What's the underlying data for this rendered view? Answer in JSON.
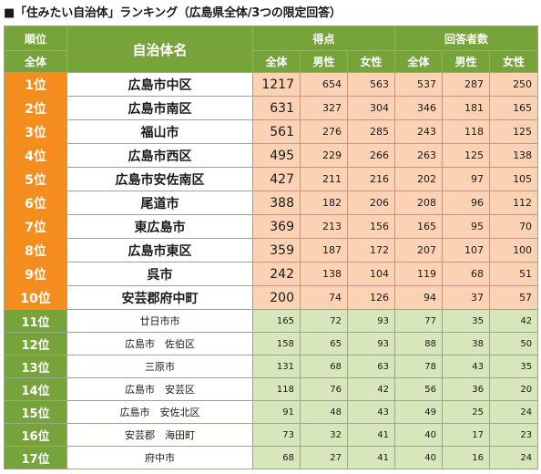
{
  "title": "■「住みたい自治体」ランキング（広島県全体/3つの限定回答）",
  "headers": {
    "rank": "順位",
    "rank_sub": "全体",
    "name": "自治体名",
    "score": "得点",
    "respondents": "回答者数",
    "total": "全体",
    "male": "男性",
    "female": "女性"
  },
  "rows": [
    {
      "rank": "1位",
      "name": "広島市中区",
      "score_total": "1217",
      "score_male": "654",
      "score_female": "563",
      "resp_total": "537",
      "resp_male": "287",
      "resp_female": "250"
    },
    {
      "rank": "2位",
      "name": "広島市南区",
      "score_total": "631",
      "score_male": "327",
      "score_female": "304",
      "resp_total": "346",
      "resp_male": "181",
      "resp_female": "165"
    },
    {
      "rank": "3位",
      "name": "福山市",
      "score_total": "561",
      "score_male": "276",
      "score_female": "285",
      "resp_total": "243",
      "resp_male": "118",
      "resp_female": "125"
    },
    {
      "rank": "4位",
      "name": "広島市西区",
      "score_total": "495",
      "score_male": "229",
      "score_female": "266",
      "resp_total": "263",
      "resp_male": "125",
      "resp_female": "138"
    },
    {
      "rank": "5位",
      "name": "広島市安佐南区",
      "score_total": "427",
      "score_male": "211",
      "score_female": "216",
      "resp_total": "202",
      "resp_male": "97",
      "resp_female": "105"
    },
    {
      "rank": "6位",
      "name": "尾道市",
      "score_total": "388",
      "score_male": "182",
      "score_female": "206",
      "resp_total": "208",
      "resp_male": "96",
      "resp_female": "112"
    },
    {
      "rank": "7位",
      "name": "東広島市",
      "score_total": "369",
      "score_male": "213",
      "score_female": "156",
      "resp_total": "165",
      "resp_male": "95",
      "resp_female": "70"
    },
    {
      "rank": "8位",
      "name": "広島市東区",
      "score_total": "359",
      "score_male": "187",
      "score_female": "172",
      "resp_total": "207",
      "resp_male": "107",
      "resp_female": "100"
    },
    {
      "rank": "9位",
      "name": "呉市",
      "score_total": "242",
      "score_male": "138",
      "score_female": "104",
      "resp_total": "119",
      "resp_male": "68",
      "resp_female": "51"
    },
    {
      "rank": "10位",
      "name": "安芸郡府中町",
      "score_total": "200",
      "score_male": "74",
      "score_female": "126",
      "resp_total": "94",
      "resp_male": "37",
      "resp_female": "57"
    },
    {
      "rank": "11位",
      "name": "廿日市市",
      "score_total": "165",
      "score_male": "72",
      "score_female": "93",
      "resp_total": "77",
      "resp_male": "35",
      "resp_female": "42"
    },
    {
      "rank": "12位",
      "name": "広島市　佐伯区",
      "score_total": "158",
      "score_male": "65",
      "score_female": "93",
      "resp_total": "88",
      "resp_male": "38",
      "resp_female": "50"
    },
    {
      "rank": "13位",
      "name": "三原市",
      "score_total": "131",
      "score_male": "68",
      "score_female": "63",
      "resp_total": "78",
      "resp_male": "43",
      "resp_female": "35"
    },
    {
      "rank": "14位",
      "name": "広島市　安芸区",
      "score_total": "118",
      "score_male": "76",
      "score_female": "42",
      "resp_total": "56",
      "resp_male": "36",
      "resp_female": "20"
    },
    {
      "rank": "15位",
      "name": "広島市　安佐北区",
      "score_total": "91",
      "score_male": "48",
      "score_female": "43",
      "resp_total": "49",
      "resp_male": "25",
      "resp_female": "24"
    },
    {
      "rank": "16位",
      "name": "安芸郡　海田町",
      "score_total": "73",
      "score_male": "32",
      "score_female": "41",
      "resp_total": "40",
      "resp_male": "17",
      "resp_female": "23"
    },
    {
      "rank": "17位",
      "name": "府中市",
      "score_total": "68",
      "score_male": "27",
      "score_female": "41",
      "resp_total": "40",
      "resp_male": "16",
      "resp_female": "24"
    }
  ],
  "colors": {
    "header_green": "#76a43a",
    "top_rank_orange": "#f58d1e",
    "top_value_peach": "#fcd2b4",
    "rest_value_green": "#d7e6bb"
  }
}
